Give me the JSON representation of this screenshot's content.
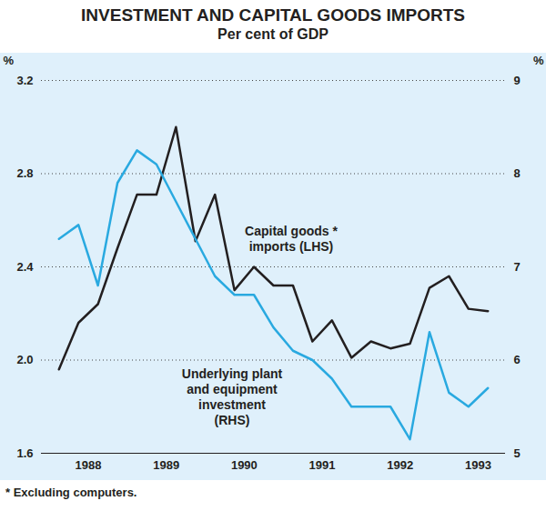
{
  "chart_data": {
    "type": "line",
    "title": "INVESTMENT AND CAPITAL GOODS IMPORTS",
    "subtitle": "Per cent of GDP",
    "footnote": "* Excluding computers.",
    "ylabel": "%",
    "y2label": "%",
    "x": [
      1988.125,
      1988.375,
      1988.625,
      1988.875,
      1989.125,
      1989.375,
      1989.625,
      1989.875,
      1990.125,
      1990.375,
      1990.625,
      1990.875,
      1991.125,
      1991.375,
      1991.625,
      1991.875,
      1992.125,
      1992.375,
      1992.625,
      1992.875,
      1993.125,
      1993.375,
      1993.625
    ],
    "xlim": [
      1987.9,
      1993.85
    ],
    "xticks": [
      {
        "value": 1988.5,
        "label": "1988"
      },
      {
        "value": 1989.5,
        "label": "1989"
      },
      {
        "value": 1990.5,
        "label": "1990"
      },
      {
        "value": 1991.5,
        "label": "1991"
      },
      {
        "value": 1992.5,
        "label": "1992"
      },
      {
        "value": 1993.5,
        "label": "1993"
      }
    ],
    "ylim": [
      1.6,
      3.2
    ],
    "yticks": [
      1.6,
      {
        "value": 2,
        "label": "2.0"
      },
      2.4,
      2.8,
      3.2
    ],
    "y2lim": [
      5,
      9
    ],
    "y2ticks": [
      5,
      6,
      7,
      8,
      9
    ],
    "grid": true,
    "series": [
      {
        "name": "Capital goods *\nimports (LHS)",
        "color": "#231f20",
        "axis": "y",
        "values": [
          1.96,
          2.16,
          2.24,
          2.48,
          2.71,
          2.71,
          3.0,
          2.51,
          2.71,
          2.3,
          2.4,
          2.32,
          2.32,
          2.08,
          2.17,
          2.01,
          2.08,
          2.05,
          2.07,
          2.31,
          2.36,
          2.22,
          2.21
        ]
      },
      {
        "name": "Underlying plant\nand equipment\ninvestment\n(RHS)",
        "color": "#29a9e0",
        "axis": "y2",
        "values": [
          7.3,
          7.45,
          6.8,
          7.9,
          8.25,
          8.1,
          7.7,
          7.3,
          6.9,
          6.7,
          6.7,
          6.35,
          6.1,
          6.0,
          5.8,
          5.5,
          5.5,
          5.5,
          5.15,
          6.3,
          5.65,
          5.5,
          5.7
        ]
      }
    ]
  }
}
